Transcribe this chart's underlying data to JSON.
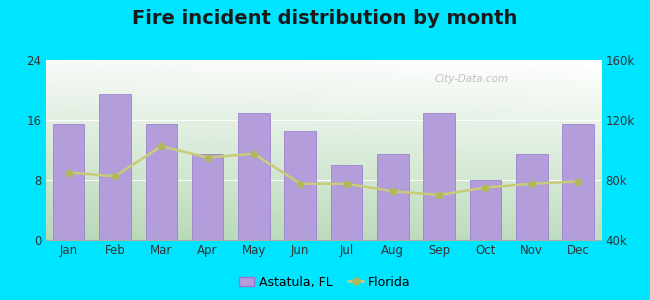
{
  "title": "Fire incident distribution by month",
  "months": [
    "Jan",
    "Feb",
    "Mar",
    "Apr",
    "May",
    "Jun",
    "Jul",
    "Aug",
    "Sep",
    "Oct",
    "Nov",
    "Dec"
  ],
  "astatula_values": [
    15.5,
    19.5,
    15.5,
    11.5,
    17.0,
    14.5,
    10.0,
    11.5,
    17.0,
    8.0,
    11.5,
    15.5
  ],
  "florida_values": [
    9.0,
    8.5,
    12.5,
    11.0,
    11.5,
    7.5,
    7.5,
    6.5,
    6.0,
    7.0,
    7.5,
    7.8
  ],
  "bar_color": "#b39ddb",
  "bar_edge_color": "#9575cd",
  "line_color": "#c8cc7a",
  "line_marker_color": "#b0b85a",
  "outer_bg": "#00e5ff",
  "plot_bg_left": "#c8e6c9",
  "plot_bg_right": "#f5f5f0",
  "ylim_left": [
    0,
    24
  ],
  "ylim_right": [
    40000,
    160000
  ],
  "yticks_left": [
    0,
    8,
    16,
    24
  ],
  "yticks_right": [
    40000,
    80000,
    120000,
    160000
  ],
  "title_fontsize": 14,
  "legend_astatula": "Astatula, FL",
  "legend_florida": "Florida",
  "watermark": "City-Data.com"
}
